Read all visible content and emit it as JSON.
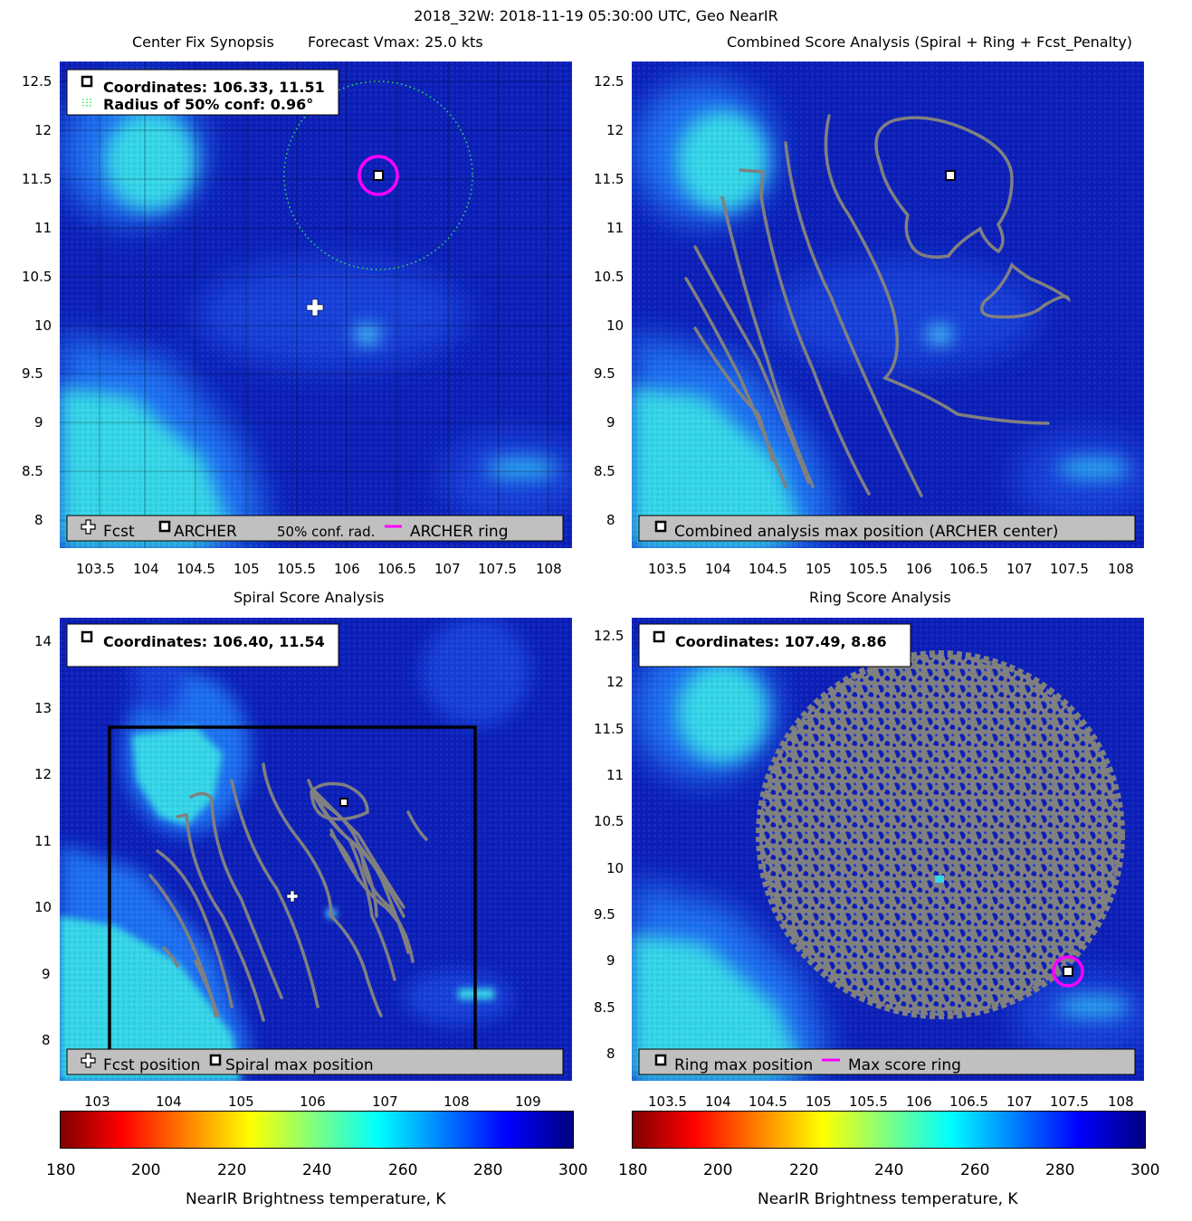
{
  "title": "2018_32W: 2018-11-19 05:30:00 UTC, Geo NearIR",
  "colors": {
    "background": "#0c1fb8",
    "cloud_mid": "#1f6ff0",
    "cloud_light": "#35d6e8",
    "contour": "#808080",
    "ring": "#ff00ff",
    "legend_bg": "#c0c0c0"
  },
  "panels": [
    {
      "id": "synopsis",
      "title_left": "Center Fix Synopsis",
      "title_right": "Forecast Vmax: 25.0 kts",
      "info": [
        "Coordinates: 106.33, 11.51",
        "Radius of 50% conf: 0.96°"
      ],
      "legend": [
        {
          "icon": "plus-icon",
          "label": "Fcst"
        },
        {
          "icon": "square-marker-icon",
          "label": "ARCHER"
        },
        {
          "icon": "dotted-line-icon",
          "label": "50% conf. rad."
        },
        {
          "icon": "magenta-line-icon",
          "label": "ARCHER ring"
        }
      ],
      "x_ticks": [
        "103.5",
        "104",
        "104.5",
        "105",
        "105.5",
        "106",
        "106.5",
        "107",
        "107.5",
        "108"
      ],
      "y_ticks": [
        "12.5",
        "12",
        "11.5",
        "11",
        "10.5",
        "10",
        "9.5",
        "9",
        "8.5",
        "8"
      ]
    },
    {
      "id": "combined",
      "title": "Combined Score Analysis (Spiral + Ring + Fcst_Penalty)",
      "legend": [
        {
          "icon": "square-marker-icon",
          "label": "Combined analysis max position (ARCHER center)"
        }
      ],
      "x_ticks": [
        "103.5",
        "104",
        "104.5",
        "105",
        "105.5",
        "106",
        "106.5",
        "107",
        "107.5",
        "108"
      ],
      "y_ticks": [
        "12.5",
        "12",
        "11.5",
        "11",
        "10.5",
        "10",
        "9.5",
        "9",
        "8.5",
        "8"
      ]
    },
    {
      "id": "spiral",
      "title": "Spiral Score Analysis",
      "info": [
        "Coordinates: 106.40, 11.54"
      ],
      "legend": [
        {
          "icon": "plus-icon",
          "label": "Fcst position"
        },
        {
          "icon": "square-marker-icon",
          "label": "Spiral max position"
        }
      ],
      "x_ticks": [
        "103",
        "104",
        "105",
        "106",
        "107",
        "108",
        "109"
      ],
      "y_ticks": [
        "14",
        "13",
        "12",
        "11",
        "10",
        "9",
        "8"
      ]
    },
    {
      "id": "ring",
      "title": "Ring Score Analysis",
      "info": [
        "Coordinates: 107.49, 8.86"
      ],
      "legend": [
        {
          "icon": "square-marker-icon",
          "label": "Ring max position"
        },
        {
          "icon": "magenta-line-icon",
          "label": "Max score ring"
        }
      ],
      "x_ticks": [
        "103.5",
        "104",
        "104.5",
        "105",
        "105.5",
        "106",
        "106.5",
        "107",
        "107.5",
        "108"
      ],
      "y_ticks": [
        "12.5",
        "12",
        "11.5",
        "11",
        "10.5",
        "10",
        "9.5",
        "9",
        "8.5",
        "8"
      ]
    }
  ],
  "colorbars": [
    {
      "ticks": [
        "180",
        "200",
        "220",
        "240",
        "260",
        "280",
        "300"
      ],
      "label": "NearIR Brightness temperature, K"
    },
    {
      "ticks": [
        "180",
        "200",
        "220",
        "240",
        "260",
        "280",
        "300"
      ],
      "label": "NearIR Brightness temperature, K"
    }
  ]
}
